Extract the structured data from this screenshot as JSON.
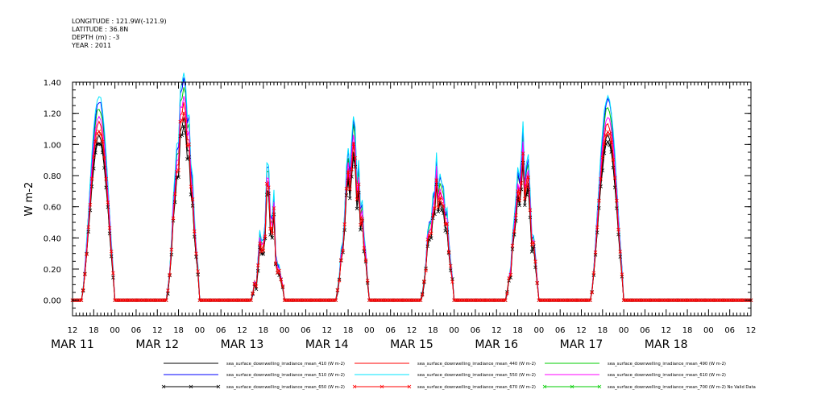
{
  "header": {
    "longitude": "LONGITUDE : 121.9W(-121.9)",
    "latitude": "LATITUDE : 36.8N",
    "depth": "DEPTH (m) : -3",
    "year": "YEAR : 2011"
  },
  "chart_data": {
    "type": "line",
    "ylabel": "W m-2",
    "ylim": [
      -0.1,
      1.4
    ],
    "y_ticks": [
      "0.00",
      "0.20",
      "0.40",
      "0.60",
      "0.80",
      "1.00",
      "1.20",
      "1.40"
    ],
    "x_hour_ticks": [
      "12",
      "18",
      "00",
      "06",
      "12",
      "18",
      "00",
      "06",
      "12",
      "18",
      "00",
      "06",
      "12",
      "18",
      "00",
      "06",
      "12",
      "18",
      "00",
      "06",
      "12",
      "18",
      "00",
      "06",
      "12",
      "18",
      "00",
      "06",
      "12",
      "18",
      "00",
      "06",
      "12"
    ],
    "x_date_labels": [
      "MAR 11",
      "MAR 12",
      "MAR 13",
      "MAR 14",
      "MAR 15",
      "MAR 16",
      "MAR 17",
      "MAR 18"
    ],
    "xlim_hours_from_mar11_00": [
      12,
      204
    ],
    "days": [
      {
        "date": "MAR 11",
        "peak": 1.05,
        "noise": 0.0
      },
      {
        "date": "MAR 12",
        "peak": 1.07,
        "noise": 0.12
      },
      {
        "date": "MAR 13",
        "peak": 0.5,
        "noise": 0.22
      },
      {
        "date": "MAR 14",
        "peak": 0.82,
        "noise": 0.16
      },
      {
        "date": "MAR 15",
        "peak": 0.72,
        "noise": 0.12
      },
      {
        "date": "MAR 16",
        "peak": 0.75,
        "noise": 0.15
      },
      {
        "date": "MAR 17",
        "peak": 1.05,
        "noise": 0.0
      }
    ],
    "grid": false,
    "legend_position": "bottom",
    "series": [
      {
        "name": "sea_surface_downwelling_irradiance_mean_410 (W m-2)",
        "color": "#000000",
        "scale": 1.0,
        "marker": "none"
      },
      {
        "name": "sea_surface_downwelling_irradiance_mean_440 (W m-2)",
        "color": "#ff0000",
        "scale": 1.08,
        "marker": "none"
      },
      {
        "name": "sea_surface_downwelling_irradiance_mean_490 (W m-2)",
        "color": "#00cc00",
        "scale": 1.18,
        "marker": "none"
      },
      {
        "name": "sea_surface_downwelling_irradiance_mean_510 (W m-2)",
        "color": "#0000ff",
        "scale": 1.22,
        "marker": "none"
      },
      {
        "name": "sea_surface_downwelling_irradiance_mean_550 (W m-2)",
        "color": "#00e5ff",
        "scale": 1.25,
        "marker": "none"
      },
      {
        "name": "sea_surface_downwelling_irradiance_mean_610 (W m-2)",
        "color": "#ff00ff",
        "scale": 1.13,
        "marker": "none"
      },
      {
        "name": "sea_surface_downwelling_irradiance_mean_650 (W m-2)",
        "color": "#000000",
        "scale": 0.97,
        "marker": "x"
      },
      {
        "name": "sea_surface_downwelling_irradiance_mean_670 (W m-2)",
        "color": "#ff0000",
        "scale": 1.04,
        "marker": "x"
      },
      {
        "name": "sea_surface_downwelling_irradiance_mean_700 (W m-2) No Valid Data",
        "color": "#00cc00",
        "scale": 0,
        "marker": "x"
      }
    ]
  }
}
